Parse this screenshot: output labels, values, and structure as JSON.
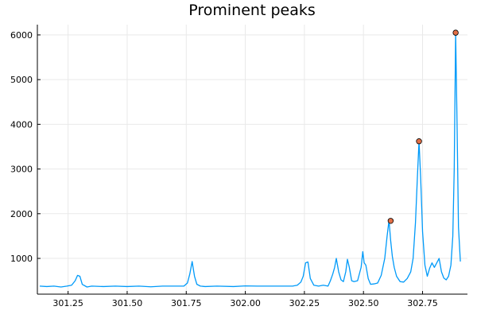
{
  "chart_data": {
    "type": "line",
    "title": "Prominent peaks",
    "xlabel": "",
    "ylabel": "",
    "xlim": [
      301.12,
      302.94
    ],
    "ylim": [
      200,
      6230
    ],
    "xticks": [
      301.25,
      301.5,
      301.75,
      302.0,
      302.25,
      302.5,
      302.75
    ],
    "xtick_labels": [
      "301.25",
      "301.50",
      "301.75",
      "302.00",
      "302.25",
      "302.50",
      "302.75"
    ],
    "yticks": [
      1000,
      2000,
      3000,
      4000,
      5000,
      6000
    ],
    "ytick_labels": [
      "1000",
      "2000",
      "3000",
      "4000",
      "5000",
      "6000"
    ],
    "grid": true,
    "legend": "none",
    "series": [
      {
        "color": "#009af9",
        "x": [
          301.13,
          301.16,
          301.19,
          301.22,
          301.245,
          301.265,
          301.28,
          301.29,
          301.3,
          301.31,
          301.33,
          301.35,
          301.4,
          301.45,
          301.5,
          301.55,
          301.6,
          301.65,
          301.7,
          301.74,
          301.755,
          301.765,
          301.775,
          301.785,
          301.795,
          301.81,
          301.83,
          301.88,
          301.95,
          302.0,
          302.05,
          302.1,
          302.15,
          302.2,
          302.22,
          302.235,
          302.245,
          302.255,
          302.265,
          302.275,
          302.29,
          302.31,
          302.33,
          302.35,
          302.36,
          302.37,
          302.378,
          302.385,
          302.395,
          302.405,
          302.415,
          302.425,
          302.432,
          302.44,
          302.45,
          302.46,
          302.475,
          302.49,
          302.497,
          302.503,
          302.51,
          302.52,
          302.53,
          302.545,
          302.56,
          302.575,
          302.59,
          302.6,
          302.608,
          302.615,
          302.622,
          302.63,
          302.64,
          302.655,
          302.67,
          302.685,
          302.7,
          302.71,
          302.72,
          302.728,
          302.735,
          302.742,
          302.75,
          302.76,
          302.77,
          302.78,
          302.79,
          302.8,
          302.81,
          302.82,
          302.83,
          302.84,
          302.85,
          302.86,
          302.87,
          302.878,
          302.884,
          302.89,
          302.896,
          302.902,
          302.91
        ],
        "y": [
          380,
          370,
          380,
          360,
          380,
          400,
          500,
          620,
          600,
          420,
          360,
          380,
          370,
          380,
          370,
          380,
          365,
          380,
          380,
          380,
          450,
          650,
          930,
          600,
          420,
          380,
          370,
          380,
          370,
          385,
          380,
          380,
          380,
          380,
          400,
          470,
          600,
          900,
          920,
          550,
          400,
          380,
          400,
          380,
          500,
          650,
          800,
          1000,
          700,
          520,
          480,
          700,
          980,
          800,
          500,
          480,
          500,
          800,
          1150,
          900,
          850,
          550,
          420,
          430,
          450,
          620,
          1000,
          1500,
          1850,
          1400,
          1050,
          800,
          600,
          480,
          470,
          550,
          700,
          1000,
          1800,
          2800,
          3620,
          2800,
          1600,
          850,
          600,
          780,
          900,
          800,
          900,
          1000,
          700,
          560,
          520,
          600,
          850,
          1500,
          3000,
          6050,
          4000,
          1700,
          930
        ]
      }
    ],
    "peaks": {
      "color": "#e26f46",
      "x": [
        302.615,
        302.735,
        302.89
      ],
      "y": [
        1840,
        3620,
        6050
      ]
    }
  }
}
